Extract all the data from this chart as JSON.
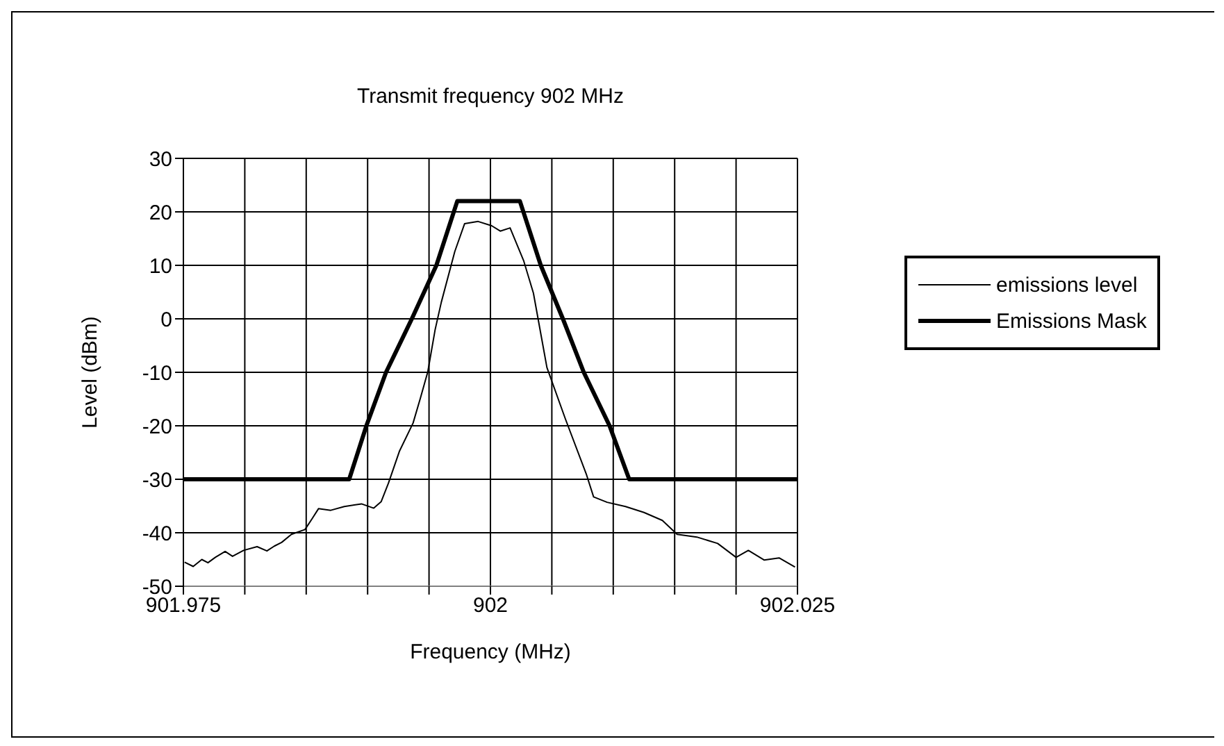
{
  "chart_data": {
    "type": "line",
    "title": "Transmit frequency 902 MHz",
    "xlabel": "Frequency (MHz)",
    "ylabel": "Level (dBm)",
    "xlim": [
      901.975,
      902.025
    ],
    "xticks": [
      901.975,
      {
        "value": 901.98,
        "label": null
      },
      {
        "value": 901.985,
        "label": null
      },
      {
        "value": 901.99,
        "label": null
      },
      {
        "value": 901.995,
        "label": null
      },
      902,
      {
        "value": 902.005,
        "label": null
      },
      {
        "value": 902.01,
        "label": null
      },
      {
        "value": 902.015,
        "label": null
      },
      {
        "value": 902.02,
        "label": null
      },
      902.025
    ],
    "ylim": [
      -50,
      30
    ],
    "yticks": [
      -50,
      -40,
      -30,
      -20,
      -10,
      0,
      10,
      20,
      30
    ],
    "grid": true,
    "legend": "right",
    "marker": "none",
    "line_style": "solid",
    "series": [
      {
        "name": "emissions level",
        "color": "#000000",
        "x": [
          901.9751,
          901.9758,
          901.9765,
          901.977,
          901.9776,
          901.9784,
          901.979,
          901.9799,
          901.981,
          901.9818,
          901.9824,
          901.983,
          901.9838,
          901.9849,
          901.9855,
          901.986,
          901.987,
          901.9881,
          901.9895,
          901.9905,
          901.9911,
          901.9917,
          901.9926,
          901.9937,
          901.9943,
          901.9949,
          901.9955,
          901.996,
          901.9971,
          901.9979,
          901.999,
          902.0001,
          902.0008,
          902.0016,
          902.0027,
          902.0035,
          902.0046,
          902.0061,
          902.0078,
          902.0084,
          902.0095,
          902.011,
          902.0125,
          902.014,
          902.0152,
          902.0168,
          902.0185,
          902.02,
          902.021,
          902.0223,
          902.0235,
          902.0248
        ],
        "values": [
          -45.5,
          -46.3,
          -45,
          -45.6,
          -44.6,
          -43.5,
          -44.4,
          -43.3,
          -42.6,
          -43.4,
          -42.5,
          -41.8,
          -40.3,
          -39.4,
          -37.3,
          -35.5,
          -35.8,
          -35.1,
          -34.6,
          -35.4,
          -34.2,
          -30.7,
          -24.7,
          -19.5,
          -14.8,
          -9.9,
          -2,
          3.1,
          12.6,
          17.8,
          18.2,
          17.4,
          16.4,
          17,
          10.9,
          4.8,
          -9.1,
          -18.7,
          -29,
          -33.3,
          -34.3,
          -35.1,
          -36.2,
          -37.7,
          -40.3,
          -40.8,
          -42,
          -44.6,
          -43.3,
          -45.1,
          -44.7,
          -46.4
        ]
      },
      {
        "name": "Emissions Mask",
        "color": "#000000",
        "x": [
          901.975,
          901.9885,
          901.9899,
          901.9915,
          901.9936,
          901.9956,
          901.9973,
          902.0024,
          902.0041,
          902.0059,
          902.0076,
          902.0097,
          902.0113,
          902.025
        ],
        "values": [
          -30,
          -30,
          -20,
          -10,
          0,
          10,
          22,
          22,
          10,
          0,
          -10,
          -20,
          -30,
          -30
        ]
      }
    ]
  }
}
